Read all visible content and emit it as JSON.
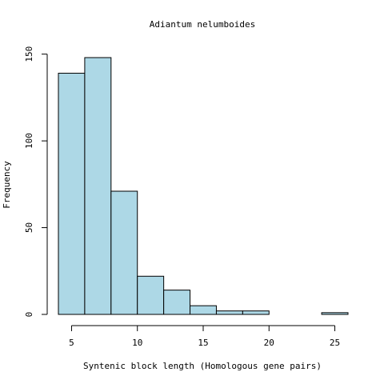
{
  "chart_data": {
    "type": "bar",
    "title": "Adiantum nelumboides",
    "xlabel": "Syntenic block length (Homologous gene pairs)",
    "ylabel": "Frequency",
    "bins": [
      {
        "start": 4,
        "end": 6,
        "count": 139
      },
      {
        "start": 6,
        "end": 8,
        "count": 148
      },
      {
        "start": 8,
        "end": 10,
        "count": 71
      },
      {
        "start": 10,
        "end": 12,
        "count": 22
      },
      {
        "start": 12,
        "end": 14,
        "count": 14
      },
      {
        "start": 14,
        "end": 16,
        "count": 5
      },
      {
        "start": 16,
        "end": 18,
        "count": 2
      },
      {
        "start": 18,
        "end": 20,
        "count": 2
      },
      {
        "start": 20,
        "end": 22,
        "count": 0
      },
      {
        "start": 22,
        "end": 24,
        "count": 0
      },
      {
        "start": 24,
        "end": 26,
        "count": 1
      }
    ],
    "x_ticks": [
      5,
      10,
      15,
      20,
      25
    ],
    "y_ticks": [
      0,
      50,
      100,
      150
    ],
    "xlim": [
      4,
      26
    ],
    "ylim": [
      0,
      148
    ],
    "grid": false,
    "legend": "none",
    "colors": {
      "bar_fill": "#add8e6",
      "bar_stroke": "#000000"
    }
  }
}
